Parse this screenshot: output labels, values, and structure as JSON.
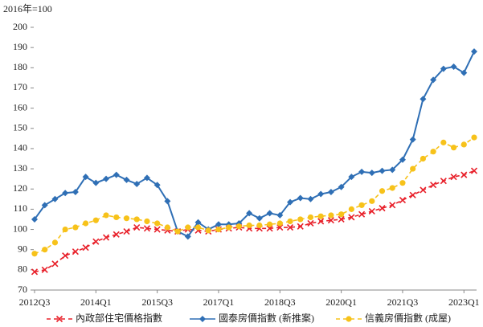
{
  "chart_data": {
    "type": "line",
    "y_axis_label": "2016年=100",
    "categories": [
      "2012Q3",
      null,
      null,
      null,
      null,
      null,
      "2014Q1",
      null,
      null,
      null,
      null,
      null,
      "2015Q3",
      null,
      null,
      null,
      null,
      null,
      "2017Q1",
      null,
      null,
      null,
      null,
      null,
      "2018Q3",
      null,
      null,
      null,
      null,
      null,
      "2020Q1",
      null,
      null,
      null,
      null,
      null,
      "2021Q3",
      null,
      null,
      null,
      null,
      null,
      "2023Q1",
      null
    ],
    "ylim": [
      70,
      200
    ],
    "yticks": [
      70,
      80,
      90,
      100,
      110,
      120,
      130,
      140,
      150,
      160,
      170,
      180,
      190,
      200
    ],
    "series": [
      {
        "name": "內政部住宅價格指數",
        "color": "#e8202a",
        "marker": "x",
        "dashed": true,
        "values": [
          79,
          80,
          83,
          87,
          89,
          91,
          94,
          96,
          97.5,
          99,
          101,
          100.5,
          100,
          99.5,
          99,
          100,
          99.5,
          99,
          100,
          100.5,
          101,
          100.5,
          100.5,
          100.5,
          101,
          101,
          101.5,
          103,
          104,
          104.5,
          105,
          106,
          107.5,
          109,
          110.5,
          112,
          114.5,
          117,
          119.5,
          122,
          124,
          126,
          127,
          129
        ]
      },
      {
        "name": "國泰房價指數 (新推案)",
        "color": "#2f6fb5",
        "marker": "diamond",
        "dashed": false,
        "values": [
          105,
          112,
          115,
          118,
          118.5,
          126,
          123,
          125,
          127,
          124.5,
          122.5,
          125.5,
          122,
          114,
          99,
          96.5,
          103.5,
          100,
          102.5,
          102.5,
          103,
          108,
          105.5,
          108,
          107,
          113.5,
          115.5,
          115,
          117.5,
          118.5,
          121,
          126,
          128.5,
          128,
          129,
          129.5,
          134.5,
          144.5,
          164.5,
          174,
          179.5,
          180.5,
          177.5,
          188
        ]
      },
      {
        "name": "信義房價指數 (成屋)",
        "color": "#f7c21a",
        "marker": "circle",
        "dashed": true,
        "values": [
          88,
          90,
          93.5,
          100,
          101,
          103,
          104.5,
          107,
          106,
          105.5,
          105,
          104,
          103,
          101,
          99,
          101,
          101,
          99.5,
          100,
          101,
          101.5,
          102,
          102,
          102.5,
          103,
          104,
          105,
          106,
          106.5,
          107,
          107.5,
          110,
          112,
          114,
          119,
          120.5,
          123,
          130,
          135,
          138.5,
          143,
          140.5,
          142,
          145.5
        ]
      }
    ]
  }
}
